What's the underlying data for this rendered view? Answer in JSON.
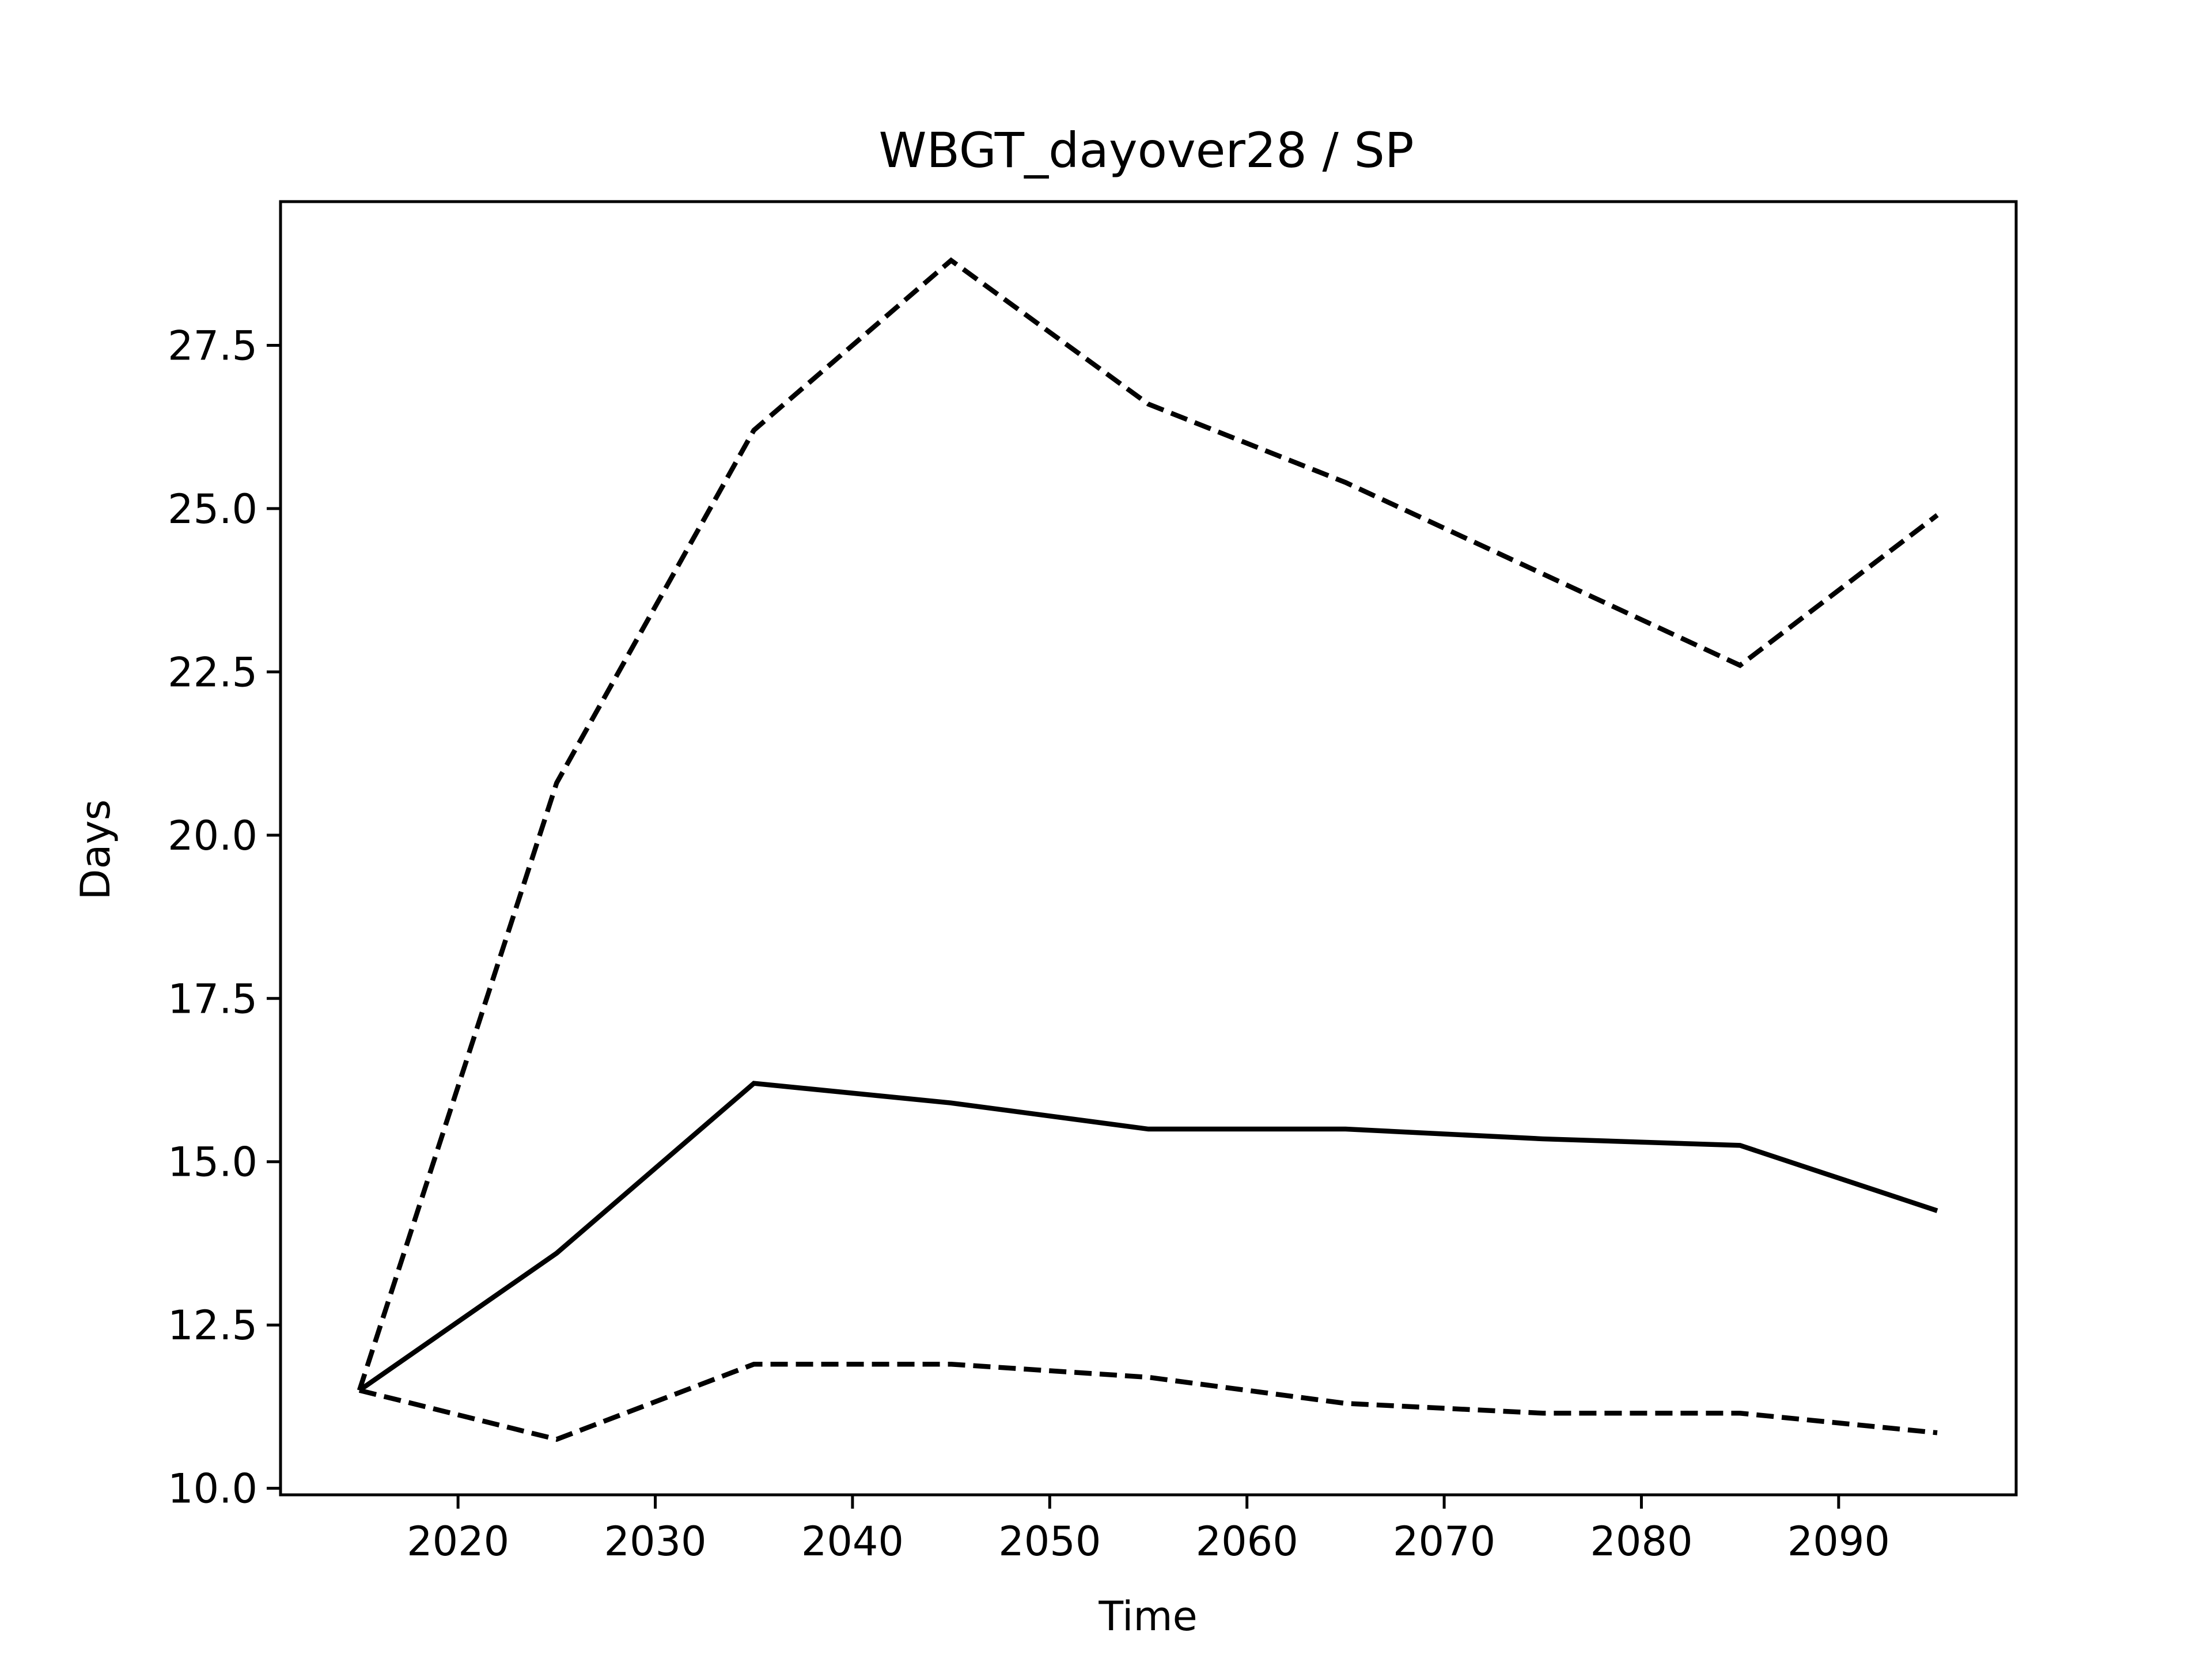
{
  "chart_data": {
    "type": "line",
    "title": "WBGT_dayover28 / SP",
    "xlabel": "Time",
    "ylabel": "Days",
    "xlim": [
      2011,
      2099
    ],
    "ylim": [
      9.9,
      29.7
    ],
    "x": [
      2015,
      2025,
      2035,
      2045,
      2055,
      2065,
      2075,
      2085,
      2095
    ],
    "x_ticks": [
      2020,
      2030,
      2040,
      2050,
      2060,
      2070,
      2080,
      2090
    ],
    "y_ticks": [
      10.0,
      12.5,
      15.0,
      17.5,
      20.0,
      22.5,
      25.0,
      27.5
    ],
    "x_tick_labels": [
      "2020",
      "2030",
      "2040",
      "2050",
      "2060",
      "2070",
      "2080",
      "2090"
    ],
    "y_tick_labels": [
      "10.0",
      "12.5",
      "15.0",
      "17.5",
      "20.0",
      "22.5",
      "25.0",
      "27.5"
    ],
    "grid": false,
    "series": [
      {
        "style": "dashed",
        "color": "#000000",
        "values": [
          11.5,
          20.8,
          26.2,
          28.8,
          26.6,
          25.4,
          24.0,
          22.6,
          24.9
        ]
      },
      {
        "style": "solid",
        "color": "#000000",
        "values": [
          11.5,
          13.6,
          16.2,
          15.9,
          15.5,
          15.5,
          15.35,
          15.25,
          14.25
        ]
      },
      {
        "style": "dashed",
        "color": "#000000",
        "values": [
          11.5,
          10.75,
          11.9,
          11.9,
          11.7,
          11.3,
          11.15,
          11.15,
          10.85
        ]
      }
    ]
  }
}
